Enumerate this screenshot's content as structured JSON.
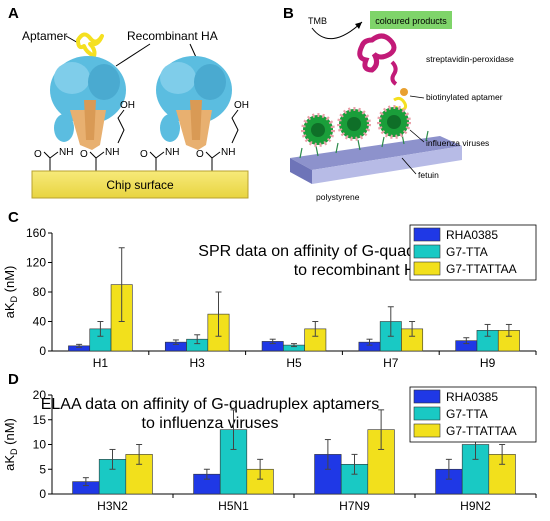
{
  "panels": {
    "a": {
      "letter": "A",
      "aptamer_label": "Aptamer",
      "ha_label": "Recombinant HA",
      "chip_label": "Chip surface",
      "atoms": {
        "o": "O",
        "nh": "NH",
        "oh": "OH"
      }
    },
    "b": {
      "letter": "B",
      "tmb": "TMB",
      "products": "coloured products",
      "enzyme": "streptavidin-peroxidase",
      "aptamer": "biotinylated aptamer",
      "viruses": "influenza viruses",
      "fetuin": "fetuin",
      "surface": "polystyrene"
    },
    "c": {
      "letter": "C"
    },
    "d": {
      "letter": "D"
    }
  },
  "colors": {
    "series": [
      "#1f38e6",
      "#19c9c4",
      "#f2e01c"
    ],
    "chip": "#f2e05a",
    "protein_blue": "#5bbde0",
    "protein_tan": "#e8b070",
    "aptamer_yellow": "#f5e020",
    "enzyme": "#c21a78",
    "virus_green": "#1a9e3a",
    "products_green": "#7fd46a"
  },
  "chart_data": [
    {
      "type": "bar",
      "panel": "C",
      "title": "SPR data on affinity of G-quadruplex aptamers",
      "title2": "to recombinant HAs",
      "ylabel": "aK",
      "ylabel_sub": "D",
      "ylabel_unit": " (nM)",
      "ylim": [
        0,
        160
      ],
      "yticks": [
        0,
        40,
        80,
        120,
        160
      ],
      "categories": [
        "H1",
        "H3",
        "H5",
        "H7",
        "H9"
      ],
      "series": [
        {
          "name": "RHA0385",
          "values": [
            7,
            12,
            13,
            12,
            14
          ],
          "errors": [
            2,
            3,
            3,
            4,
            4
          ]
        },
        {
          "name": "G7-TTA",
          "values": [
            30,
            16,
            8,
            40,
            28
          ],
          "errors": [
            10,
            6,
            2,
            20,
            8
          ]
        },
        {
          "name": "G7-TTATTAA",
          "values": [
            90,
            50,
            30,
            30,
            28
          ],
          "errors": [
            50,
            30,
            10,
            10,
            8
          ]
        }
      ],
      "legend": "top-right"
    },
    {
      "type": "bar",
      "panel": "D",
      "title": "ELAA data on affinity of G-quadruplex aptamers",
      "title2": "to influenza viruses",
      "ylabel": "aK",
      "ylabel_sub": "D",
      "ylabel_unit": " (nM)",
      "ylim": [
        0,
        20
      ],
      "yticks": [
        0,
        5,
        10,
        15,
        20
      ],
      "categories": [
        "H3N2",
        "H5N1",
        "H7N9",
        "H9N2"
      ],
      "series": [
        {
          "name": "RHA0385",
          "values": [
            2.5,
            4,
            8,
            5
          ],
          "errors": [
            0.8,
            1,
            3,
            2
          ]
        },
        {
          "name": "G7-TTA",
          "values": [
            7,
            13,
            6,
            10
          ],
          "errors": [
            2,
            4,
            2,
            3
          ]
        },
        {
          "name": "G7-TTATTAA",
          "values": [
            8,
            5,
            13,
            8
          ],
          "errors": [
            2,
            2,
            4,
            2
          ]
        }
      ],
      "legend": "top-right"
    }
  ]
}
